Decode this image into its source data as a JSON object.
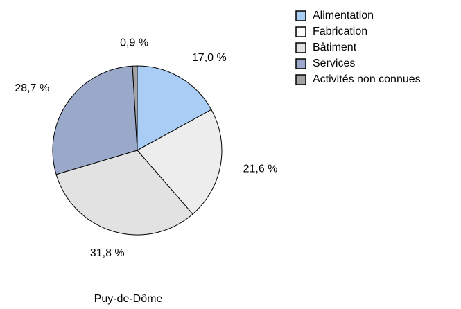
{
  "chart_data": {
    "type": "pie",
    "title": "Puy-de-Dôme",
    "categories": [
      "Alimentation",
      "Fabrication",
      "Bâtiment",
      "Services",
      "Activités non connues"
    ],
    "values": [
      17.0,
      21.6,
      31.8,
      28.7,
      0.9
    ],
    "value_labels": [
      "17,0 %",
      "21,6 %",
      "31,8 %",
      "28,7 %",
      "0,9 %"
    ],
    "colors": [
      "#a9cdf5",
      "#ededed",
      "#e2e2e2",
      "#9aa9c9",
      "#a3a3a3"
    ],
    "legend_colors": [
      "#a9cdf5",
      "#fafafa",
      "#e2e2e2",
      "#9aa9c9",
      "#a3a3a3"
    ],
    "legend": "top-right"
  }
}
